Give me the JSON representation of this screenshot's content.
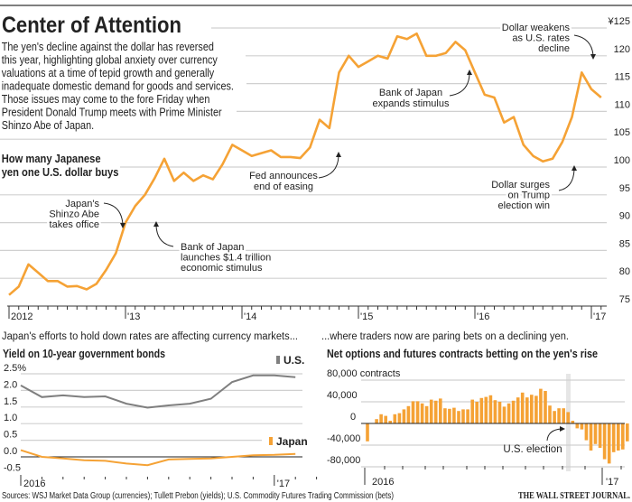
{
  "header": {
    "title": "Center of Attention",
    "intro_lines": [
      "The yen's decline against the dollar has reversed",
      "this year, highlighting global anxiety over currency",
      "valuations at a time of tepid growth and generally",
      "inadequate domestic demand for goods and services.",
      "Those issues may come to the fore Friday when",
      "President Donald Trump meets with Prime Minister",
      "Shinzo Abe of Japan."
    ]
  },
  "colors": {
    "yen": "#f5a235",
    "us": "#7f7f7f",
    "japan": "#f5a235",
    "bars": "#f5a235",
    "election_band": "#e6e6e6"
  },
  "chart_data": [
    {
      "type": "line",
      "title_lines": [
        "How many Japanese",
        "yen one U.S. dollar buys"
      ],
      "x_start": "2012-01",
      "x_step": "month",
      "x_tick_labels": [
        "2012",
        "'13",
        "'14",
        "'15",
        "'16",
        "'17"
      ],
      "y_tick_labels": [
        "¥125",
        "120",
        "115",
        "110",
        "105",
        "100",
        "95",
        "90",
        "85",
        "80",
        "75"
      ],
      "y_ticks": [
        125,
        120,
        115,
        110,
        105,
        100,
        95,
        90,
        85,
        80,
        75
      ],
      "ylim": [
        75,
        125
      ],
      "series": [
        {
          "name": "Yen per dollar",
          "values": [
            77,
            78.5,
            82.5,
            81,
            79.5,
            79.5,
            78.5,
            78.6,
            78,
            79,
            81.5,
            84.5,
            90,
            93,
            95,
            98,
            101.5,
            97.5,
            99,
            97.5,
            98.5,
            97.8,
            100.5,
            104,
            103,
            102,
            102.5,
            103,
            101.8,
            101.8,
            101.6,
            103.5,
            108.5,
            107,
            117,
            120,
            118,
            119,
            120,
            119.5,
            123.5,
            123,
            124,
            120,
            120,
            120.5,
            122.5,
            121,
            117,
            113,
            112.5,
            108,
            109,
            104,
            102,
            101,
            101.5,
            104.5,
            109,
            117,
            114,
            112.5
          ]
        }
      ],
      "annotations": [
        {
          "lines": [
            "Dollar weakens",
            "as U.S. rates",
            "decline"
          ]
        },
        {
          "lines": [
            "Bank of Japan",
            "expands stimulus"
          ]
        },
        {
          "lines": [
            "Fed announces",
            "end of easing"
          ]
        },
        {
          "lines": [
            "Dollar surges",
            "on Trump",
            "election win"
          ]
        },
        {
          "lines": [
            "Japan's",
            "Shinzo Abe",
            "takes office"
          ]
        },
        {
          "lines": [
            "Bank of Japan",
            "launches $1.4 trillion",
            "economic stimulus"
          ]
        }
      ]
    },
    {
      "type": "line",
      "kicker": "Japan's efforts to hold down rates are affecting currency markets...",
      "title": "Yield on 10-year government bonds",
      "x_start": "2016-01",
      "x_step": "month",
      "x_tick_labels": [
        "2016",
        "'17"
      ],
      "y_tick_labels": [
        "2.5%",
        "2.0",
        "1.5",
        "1.0",
        "0.5",
        "0.0",
        "-0.5"
      ],
      "y_ticks": [
        2.5,
        2.0,
        1.5,
        1.0,
        0.5,
        0.0,
        -0.5
      ],
      "ylim": [
        -0.5,
        2.5
      ],
      "series": [
        {
          "name": "U.S.",
          "values": [
            2.15,
            1.8,
            1.85,
            1.8,
            1.82,
            1.6,
            1.48,
            1.55,
            1.6,
            1.75,
            2.25,
            2.45,
            2.45,
            2.4
          ]
        },
        {
          "name": "Japan",
          "values": [
            0.2,
            0.0,
            -0.05,
            -0.1,
            -0.12,
            -0.2,
            -0.25,
            -0.08,
            -0.06,
            -0.05,
            0.0,
            0.05,
            0.06,
            0.09
          ]
        }
      ]
    },
    {
      "type": "bar",
      "kicker": "...where traders now are paring bets on a declining yen.",
      "title": "Net options and futures contracts betting on the yen's rise",
      "x_start": "2016-01",
      "x_step": "week",
      "x_tick_labels": [
        "2016",
        "'17"
      ],
      "y_tick_labels": [
        "80,000 contracts",
        "40,000",
        "0",
        "-40,000",
        "-80,000"
      ],
      "y_ticks": [
        80000,
        40000,
        0,
        -40000,
        -80000
      ],
      "ylim": [
        -80000,
        80000
      ],
      "annotation": "U.S. election",
      "values": [
        -33000,
        null,
        8000,
        17000,
        14000,
        5000,
        17000,
        19000,
        26000,
        32000,
        41000,
        41000,
        37000,
        32000,
        44000,
        42000,
        46000,
        28000,
        27000,
        29000,
        23000,
        26000,
        26000,
        44000,
        40000,
        47000,
        49000,
        52000,
        43000,
        40000,
        31000,
        37000,
        42000,
        48000,
        57000,
        48000,
        53000,
        51000,
        64000,
        60000,
        33000,
        23000,
        28000,
        28000,
        21000,
        5000,
        -9000,
        -11000,
        -31000,
        -50000,
        -38000,
        -45000,
        -66000,
        -74000,
        -53000,
        -50000,
        -48000,
        -33000
      ]
    }
  ],
  "footer": {
    "sources": "Sources: WSJ Market Data Group (currencies); Tullett Prebon (yields); U.S. Commodity Futures Trading Commission (bets)",
    "brand": "THE WALL STREET JOURNAL."
  }
}
